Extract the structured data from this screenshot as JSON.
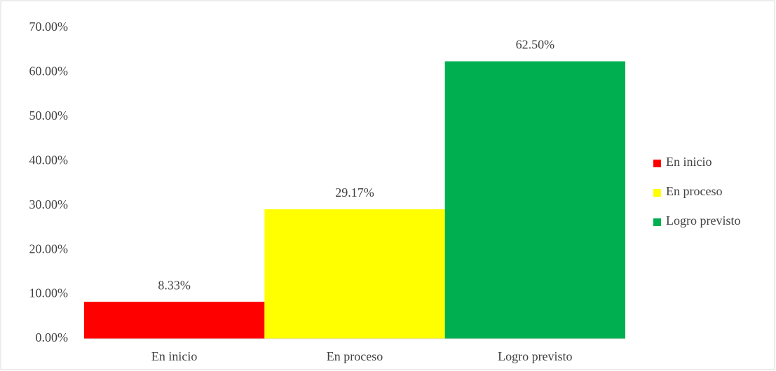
{
  "chart_data": {
    "type": "bar",
    "categories": [
      "En inicio",
      "En proceso",
      "Logro previsto"
    ],
    "values": [
      8.33,
      29.17,
      62.5
    ],
    "value_labels": [
      "8.33%",
      "29.17%",
      "62.50%"
    ],
    "colors": [
      "#ff0000",
      "#ffff00",
      "#00b050"
    ],
    "ylim": [
      0,
      70
    ],
    "yticks": [
      {
        "value": 0,
        "label": "0.00%"
      },
      {
        "value": 10,
        "label": "10.00%"
      },
      {
        "value": 20,
        "label": "20.00%"
      },
      {
        "value": 30,
        "label": "30.00%"
      },
      {
        "value": 40,
        "label": "40.00%"
      },
      {
        "value": 50,
        "label": "50.00%"
      },
      {
        "value": 60,
        "label": "60.00%"
      },
      {
        "value": 70,
        "label": "70.00%"
      }
    ],
    "grid": false,
    "legend": "right"
  }
}
